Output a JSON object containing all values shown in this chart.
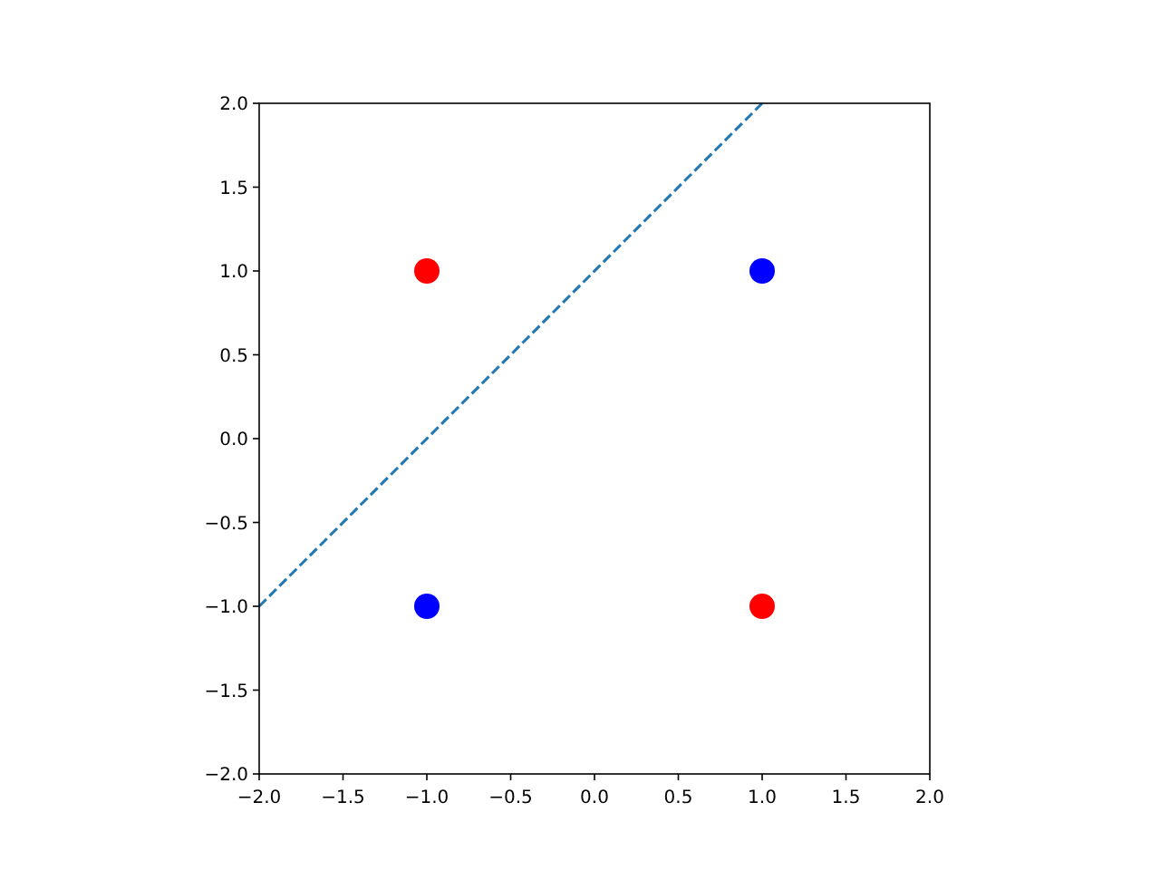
{
  "chart_data": {
    "type": "scatter",
    "xlim": [
      -2,
      2
    ],
    "ylim": [
      -2,
      2
    ],
    "xticks": [
      {
        "value": -2,
        "label": "−2.0"
      },
      {
        "value": -1.5,
        "label": "−1.5"
      },
      {
        "value": -1,
        "label": "−1.0"
      },
      {
        "value": -0.5,
        "label": "−0.5"
      },
      {
        "value": 0,
        "label": "0.0"
      },
      {
        "value": 0.5,
        "label": "0.5"
      },
      {
        "value": 1,
        "label": "1.0"
      },
      {
        "value": 1.5,
        "label": "1.5"
      },
      {
        "value": 2,
        "label": "2.0"
      }
    ],
    "yticks": [
      {
        "value": -2,
        "label": "−2.0"
      },
      {
        "value": -1.5,
        "label": "−1.5"
      },
      {
        "value": -1,
        "label": "−1.0"
      },
      {
        "value": -0.5,
        "label": "−0.5"
      },
      {
        "value": 0,
        "label": "0.0"
      },
      {
        "value": 0.5,
        "label": "0.5"
      },
      {
        "value": 1,
        "label": "1.0"
      },
      {
        "value": 1.5,
        "label": "1.5"
      },
      {
        "value": 2,
        "label": "2.0"
      }
    ],
    "marker": "circle",
    "grid": false,
    "series": [
      {
        "color": "#ff0000",
        "x": [
          -1,
          1
        ],
        "values": [
          1,
          -1
        ]
      },
      {
        "color": "#0000ff",
        "x": [
          1,
          -1
        ],
        "values": [
          1,
          -1
        ]
      },
      {
        "type": "line",
        "color": "#1f77b4",
        "line_style": "dashed",
        "marker": "none",
        "x": [
          -2,
          1
        ],
        "values": [
          -1,
          2
        ]
      }
    ]
  }
}
